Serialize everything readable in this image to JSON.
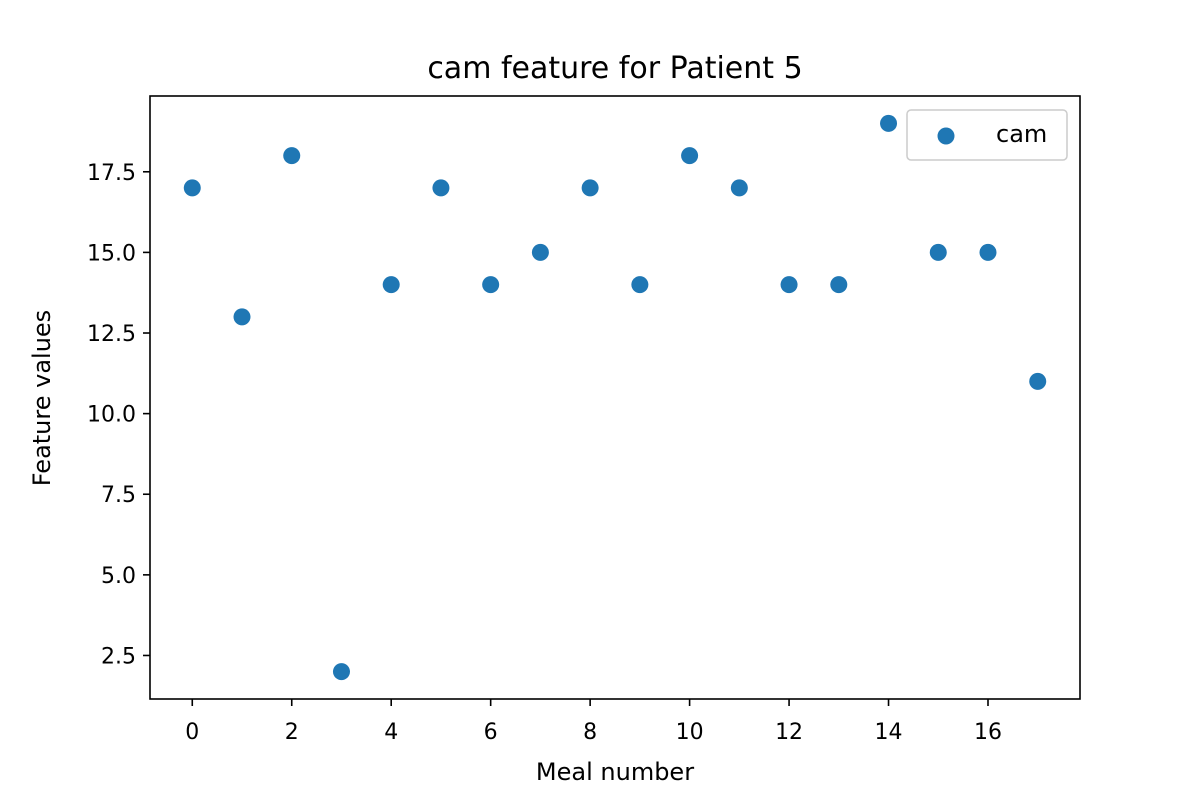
{
  "chart_data": {
    "type": "scatter",
    "title": "cam feature for Patient 5",
    "xlabel": "Meal number",
    "ylabel": "Feature values",
    "xlim": [
      -0.85,
      17.85
    ],
    "ylim": [
      1.15,
      19.85
    ],
    "xticks": [
      0,
      2,
      4,
      6,
      8,
      10,
      12,
      14,
      16
    ],
    "xtick_labels": [
      "0",
      "2",
      "4",
      "6",
      "8",
      "10",
      "12",
      "14",
      "16"
    ],
    "yticks": [
      2.5,
      5.0,
      7.5,
      10.0,
      12.5,
      15.0,
      17.5
    ],
    "ytick_labels": [
      "2.5",
      "5.0",
      "7.5",
      "10.0",
      "12.5",
      "15.0",
      "17.5"
    ],
    "grid": false,
    "legend_position": "top-right",
    "series": [
      {
        "name": "cam",
        "color": "#1f77b4",
        "x": [
          0,
          1,
          2,
          3,
          4,
          5,
          6,
          7,
          8,
          9,
          10,
          11,
          12,
          13,
          14,
          15,
          16,
          17
        ],
        "y": [
          17,
          13,
          18,
          2,
          14,
          17,
          14,
          15,
          17,
          14,
          18,
          17,
          14,
          14,
          19,
          15,
          15,
          11
        ]
      }
    ]
  }
}
